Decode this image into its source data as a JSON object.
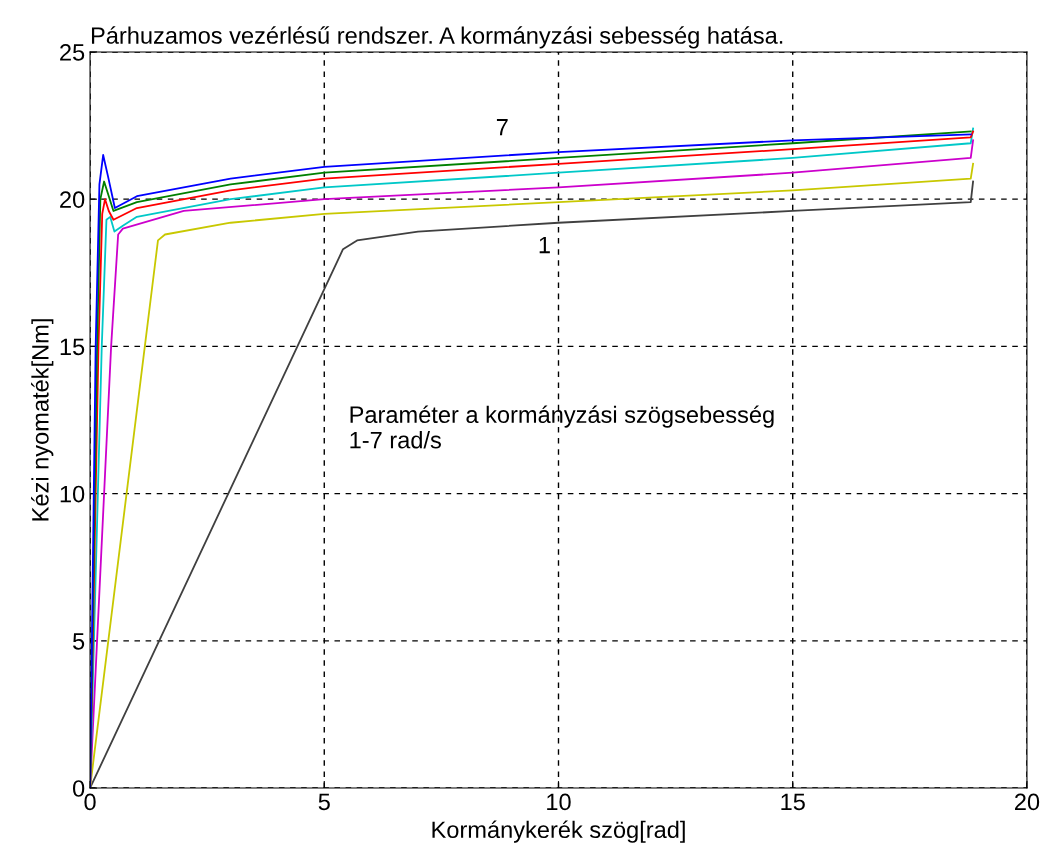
{
  "chart_data": {
    "type": "line",
    "title": "Párhuzamos vezérlésű rendszer. A kormányzási sebesség hatása.",
    "xlabel": "Kormánykerék szög[rad]",
    "ylabel": "Kézi nyomaték[Nm]",
    "xlim": [
      0,
      20
    ],
    "ylim": [
      0,
      25
    ],
    "xticks": [
      0,
      5,
      10,
      15,
      20
    ],
    "yticks": [
      0,
      5,
      10,
      15,
      20,
      25
    ],
    "grid": true,
    "line_style": "solid",
    "marker": "none",
    "legend": false,
    "series": [
      {
        "color": "#404040",
        "x": [
          0,
          5.4,
          5.7,
          7,
          10,
          15,
          18.8,
          18.85
        ],
        "values": [
          0,
          18.3,
          18.6,
          18.9,
          19.2,
          19.6,
          19.9,
          20.6
        ]
      },
      {
        "color": "#c8c800",
        "x": [
          0,
          1.45,
          1.6,
          3,
          5,
          10,
          15,
          18.8,
          18.85
        ],
        "values": [
          0,
          18.6,
          18.8,
          19.2,
          19.5,
          19.9,
          20.3,
          20.7,
          21.2
        ]
      },
      {
        "color": "#cc00cc",
        "x": [
          0,
          0.45,
          0.6,
          0.7,
          2,
          5,
          10,
          15,
          18.8,
          18.85
        ],
        "values": [
          0,
          15,
          18.8,
          19.0,
          19.6,
          20.0,
          20.4,
          20.9,
          21.4,
          22.0
        ]
      },
      {
        "color": "#00c8c8",
        "x": [
          0,
          0.25,
          0.35,
          0.43,
          0.52,
          0.7,
          1,
          3,
          5,
          10,
          15,
          18.8,
          18.85
        ],
        "values": [
          0,
          15,
          19.3,
          19.4,
          18.9,
          19.1,
          19.4,
          20.0,
          20.4,
          20.9,
          21.4,
          21.9,
          22.4
        ]
      },
      {
        "color": "#ff0000",
        "x": [
          0,
          0.18,
          0.26,
          0.32,
          0.4,
          0.5,
          1,
          3,
          5,
          10,
          15,
          18.8,
          18.85
        ],
        "values": [
          0,
          15,
          19.5,
          20.0,
          19.6,
          19.3,
          19.7,
          20.3,
          20.7,
          21.2,
          21.7,
          22.1,
          22.3
        ]
      },
      {
        "color": "#008000",
        "x": [
          0,
          0.15,
          0.22,
          0.3,
          0.4,
          0.5,
          1,
          3,
          5,
          10,
          15,
          18.8
        ],
        "values": [
          0,
          15,
          20,
          20.6,
          20.1,
          19.6,
          19.9,
          20.5,
          20.9,
          21.4,
          21.9,
          22.3
        ]
      },
      {
        "color": "#0000ff",
        "x": [
          0,
          0.12,
          0.2,
          0.28,
          0.38,
          0.53,
          1,
          3,
          5,
          10,
          15,
          18.8
        ],
        "values": [
          0,
          15,
          20.5,
          21.5,
          20.8,
          19.7,
          20.1,
          20.7,
          21.1,
          21.6,
          22.0,
          22.2
        ]
      }
    ],
    "annotations": [
      "7",
      "1",
      "Paraméter a kormányzási szögsebesség\n1-7 rad/s"
    ]
  }
}
